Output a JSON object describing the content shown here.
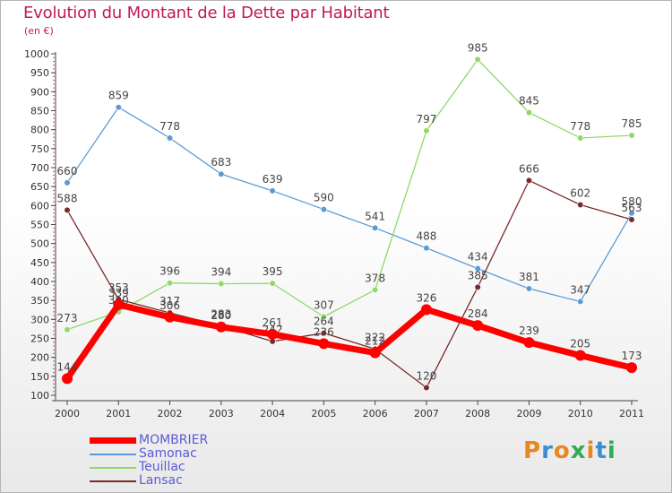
{
  "title": "Evolution du Montant de la Dette par Habitant",
  "subtitle": "(en €)",
  "logo": "Proxiti",
  "chart_data": {
    "type": "line",
    "x": [
      "2000",
      "2001",
      "2002",
      "2003",
      "2004",
      "2005",
      "2006",
      "2007",
      "2008",
      "2009",
      "2010",
      "2011"
    ],
    "ylim": [
      100,
      1000
    ],
    "yticks": [
      100,
      150,
      200,
      250,
      300,
      350,
      400,
      450,
      500,
      550,
      600,
      650,
      700,
      750,
      800,
      850,
      900,
      950,
      1000
    ],
    "grid": false,
    "legend_position": "bottom-left",
    "series": [
      {
        "name": "MOMBRIER",
        "color": "#ff0000",
        "values": [
          144,
          339,
          306,
          280,
          261,
          236,
          212,
          326,
          284,
          239,
          205,
          173
        ]
      },
      {
        "name": "Samonac",
        "color": "#5b9bd5",
        "values": [
          660,
          859,
          778,
          683,
          639,
          590,
          541,
          488,
          434,
          381,
          347,
          580
        ]
      },
      {
        "name": "Teuillac",
        "color": "#8fd96a",
        "values": [
          273,
          320,
          396,
          394,
          395,
          307,
          378,
          797,
          985,
          845,
          778,
          785
        ]
      },
      {
        "name": "Lansac",
        "color": "#7a2a2a",
        "values": [
          588,
          353,
          317,
          283,
          242,
          264,
          222,
          120,
          385,
          666,
          602,
          563
        ]
      }
    ]
  }
}
